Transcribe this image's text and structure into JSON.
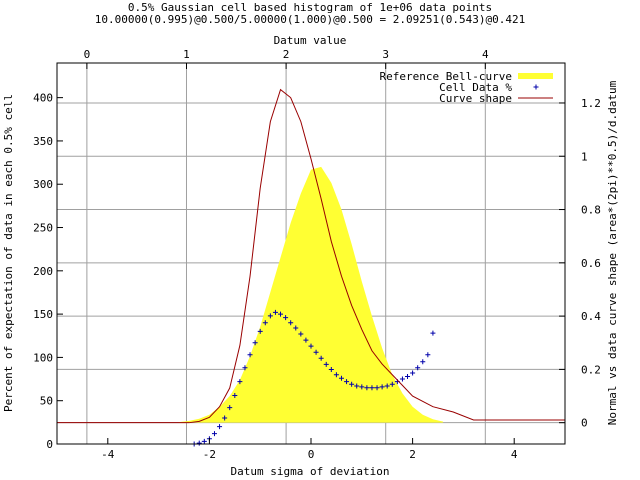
{
  "chart_data": {
    "type": "line",
    "title": "0.5% Gaussian cell based histogram of 1e+06 data points",
    "subtitle": "10.00000(0.995)@0.500/5.00000(1.000)@0.500 = 2.09251(0.543)@0.421",
    "xlabel": "Datum sigma of deviation",
    "x2label": "Datum value",
    "ylabel": "Percent of expectation of data in each 0.5% cell",
    "y2label": "Normal vs data curve shape (area*(2pi)**0.5)/d.datum",
    "xlim": [
      -5,
      5
    ],
    "ylim": [
      0,
      440
    ],
    "x2lim": [
      -0.3,
      4.8
    ],
    "y2lim": [
      -0.08,
      1.35
    ],
    "x_ticks": [
      -4,
      -2,
      0,
      2,
      4
    ],
    "y_ticks": [
      0,
      50,
      100,
      150,
      200,
      250,
      300,
      350,
      400
    ],
    "x2_ticks": [
      0,
      1,
      2,
      3,
      4
    ],
    "y2_ticks": [
      0,
      0.2,
      0.4,
      0.6,
      0.8,
      1,
      1.2
    ],
    "grid": true,
    "legend_position": "top-right",
    "legend": [
      {
        "label": "Reference Bell-curve",
        "color": "#ffff33",
        "style": "filled-area"
      },
      {
        "label": "Cell Data %",
        "color": "#0000aa",
        "style": "plus-points"
      },
      {
        "label": "Curve shape",
        "color": "#990000",
        "style": "line"
      }
    ],
    "series": [
      {
        "name": "Reference Bell-curve",
        "axis": "secondary",
        "style": "filled-area",
        "color": "#ffff33",
        "x": [
          -2.6,
          -2.4,
          -2.2,
          -2.0,
          -1.8,
          -1.6,
          -1.4,
          -1.2,
          -1.0,
          -0.8,
          -0.6,
          -0.4,
          -0.2,
          0.0,
          0.2,
          0.4,
          0.6,
          0.8,
          1.0,
          1.2,
          1.4,
          1.6,
          1.8,
          2.0,
          2.2,
          2.4,
          2.6
        ],
        "y": [
          0.002,
          0.007,
          0.015,
          0.03,
          0.06,
          0.1,
          0.16,
          0.25,
          0.36,
          0.49,
          0.62,
          0.75,
          0.86,
          0.95,
          0.96,
          0.9,
          0.8,
          0.67,
          0.53,
          0.4,
          0.28,
          0.18,
          0.11,
          0.06,
          0.03,
          0.013,
          0.004
        ]
      },
      {
        "name": "Cell Data %",
        "axis": "primary",
        "style": "plus-points",
        "color": "#0000aa",
        "x": [
          -2.3,
          -2.2,
          -2.1,
          -2.0,
          -1.9,
          -1.8,
          -1.7,
          -1.6,
          -1.5,
          -1.4,
          -1.3,
          -1.2,
          -1.1,
          -1.0,
          -0.9,
          -0.8,
          -0.7,
          -0.6,
          -0.5,
          -0.4,
          -0.3,
          -0.2,
          -0.1,
          0.0,
          0.1,
          0.2,
          0.3,
          0.4,
          0.5,
          0.6,
          0.7,
          0.8,
          0.9,
          1.0,
          1.1,
          1.2,
          1.3,
          1.4,
          1.5,
          1.6,
          1.7,
          1.8,
          1.9,
          2.0,
          2.1,
          2.2,
          2.3,
          2.4
        ],
        "y": [
          0,
          1,
          3,
          6,
          12,
          20,
          30,
          42,
          56,
          72,
          88,
          103,
          117,
          130,
          140,
          148,
          152,
          150,
          146,
          140,
          134,
          127,
          120,
          113,
          106,
          99,
          92,
          86,
          80,
          76,
          72,
          69,
          67,
          66,
          65,
          65,
          65,
          66,
          67,
          69,
          72,
          75,
          78,
          82,
          88,
          95,
          103,
          128
        ]
      },
      {
        "name": "Curve shape",
        "axis": "secondary",
        "style": "line",
        "color": "#990000",
        "x": [
          -5.0,
          -2.4,
          -2.2,
          -2.0,
          -1.8,
          -1.6,
          -1.4,
          -1.2,
          -1.0,
          -0.8,
          -0.6,
          -0.4,
          -0.2,
          0.0,
          0.2,
          0.4,
          0.6,
          0.8,
          1.0,
          1.2,
          1.4,
          1.6,
          1.8,
          2.0,
          2.4,
          2.8,
          3.2,
          4.0,
          5.0
        ],
        "y": [
          0.0,
          0.0,
          0.005,
          0.02,
          0.06,
          0.13,
          0.29,
          0.55,
          0.88,
          1.13,
          1.25,
          1.22,
          1.13,
          0.99,
          0.84,
          0.68,
          0.55,
          0.44,
          0.35,
          0.27,
          0.22,
          0.18,
          0.14,
          0.1,
          0.06,
          0.04,
          0.01,
          0.01,
          0.01
        ]
      }
    ]
  }
}
